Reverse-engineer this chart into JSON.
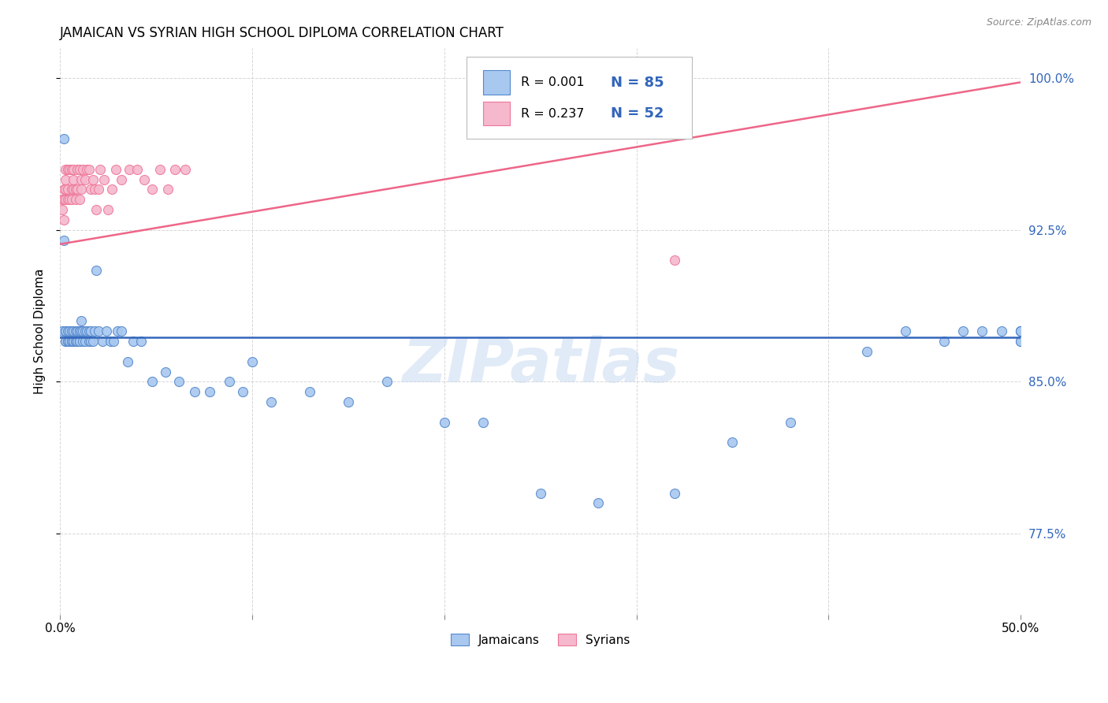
{
  "title": "JAMAICAN VS SYRIAN HIGH SCHOOL DIPLOMA CORRELATION CHART",
  "source": "Source: ZipAtlas.com",
  "ylabel": "High School Diploma",
  "right_ytick_labels": [
    "77.5%",
    "85.0%",
    "92.5%",
    "100.0%"
  ],
  "right_ytick_values": [
    0.775,
    0.85,
    0.925,
    1.0
  ],
  "watermark": "ZIPatlas",
  "jamaican_color": "#a8c8f0",
  "syrian_color": "#f5b8cc",
  "jamaican_edge_color": "#5588cc",
  "syrian_edge_color": "#ee7799",
  "jamaican_line_color": "#3366bb",
  "syrian_line_color": "#ee6688",
  "right_axis_color": "#3366bb",
  "background_color": "#ffffff",
  "jamaican_x": [
    0.001,
    0.002,
    0.002,
    0.003,
    0.003,
    0.003,
    0.003,
    0.004,
    0.004,
    0.004,
    0.005,
    0.005,
    0.005,
    0.006,
    0.006,
    0.006,
    0.007,
    0.007,
    0.007,
    0.008,
    0.008,
    0.008,
    0.009,
    0.009,
    0.009,
    0.009,
    0.01,
    0.01,
    0.01,
    0.01,
    0.011,
    0.011,
    0.012,
    0.012,
    0.013,
    0.013,
    0.014,
    0.015,
    0.015,
    0.016,
    0.016,
    0.017,
    0.018,
    0.019,
    0.02,
    0.022,
    0.024,
    0.026,
    0.028,
    0.03,
    0.032,
    0.035,
    0.038,
    0.042,
    0.048,
    0.055,
    0.062,
    0.07,
    0.078,
    0.088,
    0.095,
    0.1,
    0.11,
    0.13,
    0.15,
    0.17,
    0.2,
    0.22,
    0.25,
    0.28,
    0.32,
    0.35,
    0.38,
    0.42,
    0.44,
    0.46,
    0.47,
    0.48,
    0.49,
    0.5,
    0.5,
    0.5,
    0.5,
    0.5,
    0.5
  ],
  "jamaican_y": [
    0.875,
    0.97,
    0.92,
    0.87,
    0.875,
    0.87,
    0.875,
    0.87,
    0.87,
    0.875,
    0.87,
    0.875,
    0.87,
    0.87,
    0.875,
    0.87,
    0.87,
    0.875,
    0.87,
    0.87,
    0.875,
    0.87,
    0.87,
    0.875,
    0.875,
    0.87,
    0.875,
    0.87,
    0.87,
    0.875,
    0.88,
    0.875,
    0.875,
    0.87,
    0.875,
    0.87,
    0.875,
    0.875,
    0.87,
    0.875,
    0.87,
    0.87,
    0.875,
    0.905,
    0.875,
    0.87,
    0.875,
    0.87,
    0.87,
    0.875,
    0.875,
    0.86,
    0.87,
    0.87,
    0.85,
    0.855,
    0.85,
    0.845,
    0.845,
    0.85,
    0.845,
    0.86,
    0.84,
    0.845,
    0.84,
    0.85,
    0.83,
    0.83,
    0.795,
    0.79,
    0.795,
    0.82,
    0.83,
    0.865,
    0.875,
    0.87,
    0.875,
    0.875,
    0.875,
    0.875,
    0.87,
    0.87,
    0.875,
    0.875,
    0.875
  ],
  "syrian_x": [
    0.001,
    0.001,
    0.002,
    0.002,
    0.002,
    0.003,
    0.003,
    0.003,
    0.003,
    0.004,
    0.004,
    0.004,
    0.005,
    0.005,
    0.006,
    0.006,
    0.006,
    0.007,
    0.007,
    0.007,
    0.008,
    0.008,
    0.009,
    0.009,
    0.01,
    0.01,
    0.011,
    0.011,
    0.012,
    0.013,
    0.014,
    0.015,
    0.016,
    0.017,
    0.018,
    0.019,
    0.02,
    0.021,
    0.023,
    0.025,
    0.027,
    0.029,
    0.032,
    0.036,
    0.04,
    0.044,
    0.048,
    0.052,
    0.056,
    0.06,
    0.065,
    0.32
  ],
  "syrian_y": [
    0.935,
    0.94,
    0.93,
    0.94,
    0.945,
    0.95,
    0.955,
    0.94,
    0.945,
    0.955,
    0.94,
    0.945,
    0.955,
    0.94,
    0.945,
    0.955,
    0.94,
    0.95,
    0.945,
    0.955,
    0.94,
    0.945,
    0.955,
    0.945,
    0.955,
    0.94,
    0.95,
    0.945,
    0.955,
    0.95,
    0.955,
    0.955,
    0.945,
    0.95,
    0.945,
    0.935,
    0.945,
    0.955,
    0.95,
    0.935,
    0.945,
    0.955,
    0.95,
    0.955,
    0.955,
    0.95,
    0.945,
    0.955,
    0.945,
    0.955,
    0.955,
    0.91
  ],
  "jamaican_line_y0": 0.872,
  "jamaican_line_y1": 0.872,
  "syrian_line_y0": 0.918,
  "syrian_line_y1": 0.998,
  "xlim": [
    0.0,
    0.5
  ],
  "ylim": [
    0.735,
    1.015
  ],
  "xticks": [
    0.0,
    0.1,
    0.2,
    0.3,
    0.4,
    0.5
  ],
  "xtick_labels": [
    "0.0%",
    "",
    "",
    "",
    "",
    "50.0%"
  ]
}
